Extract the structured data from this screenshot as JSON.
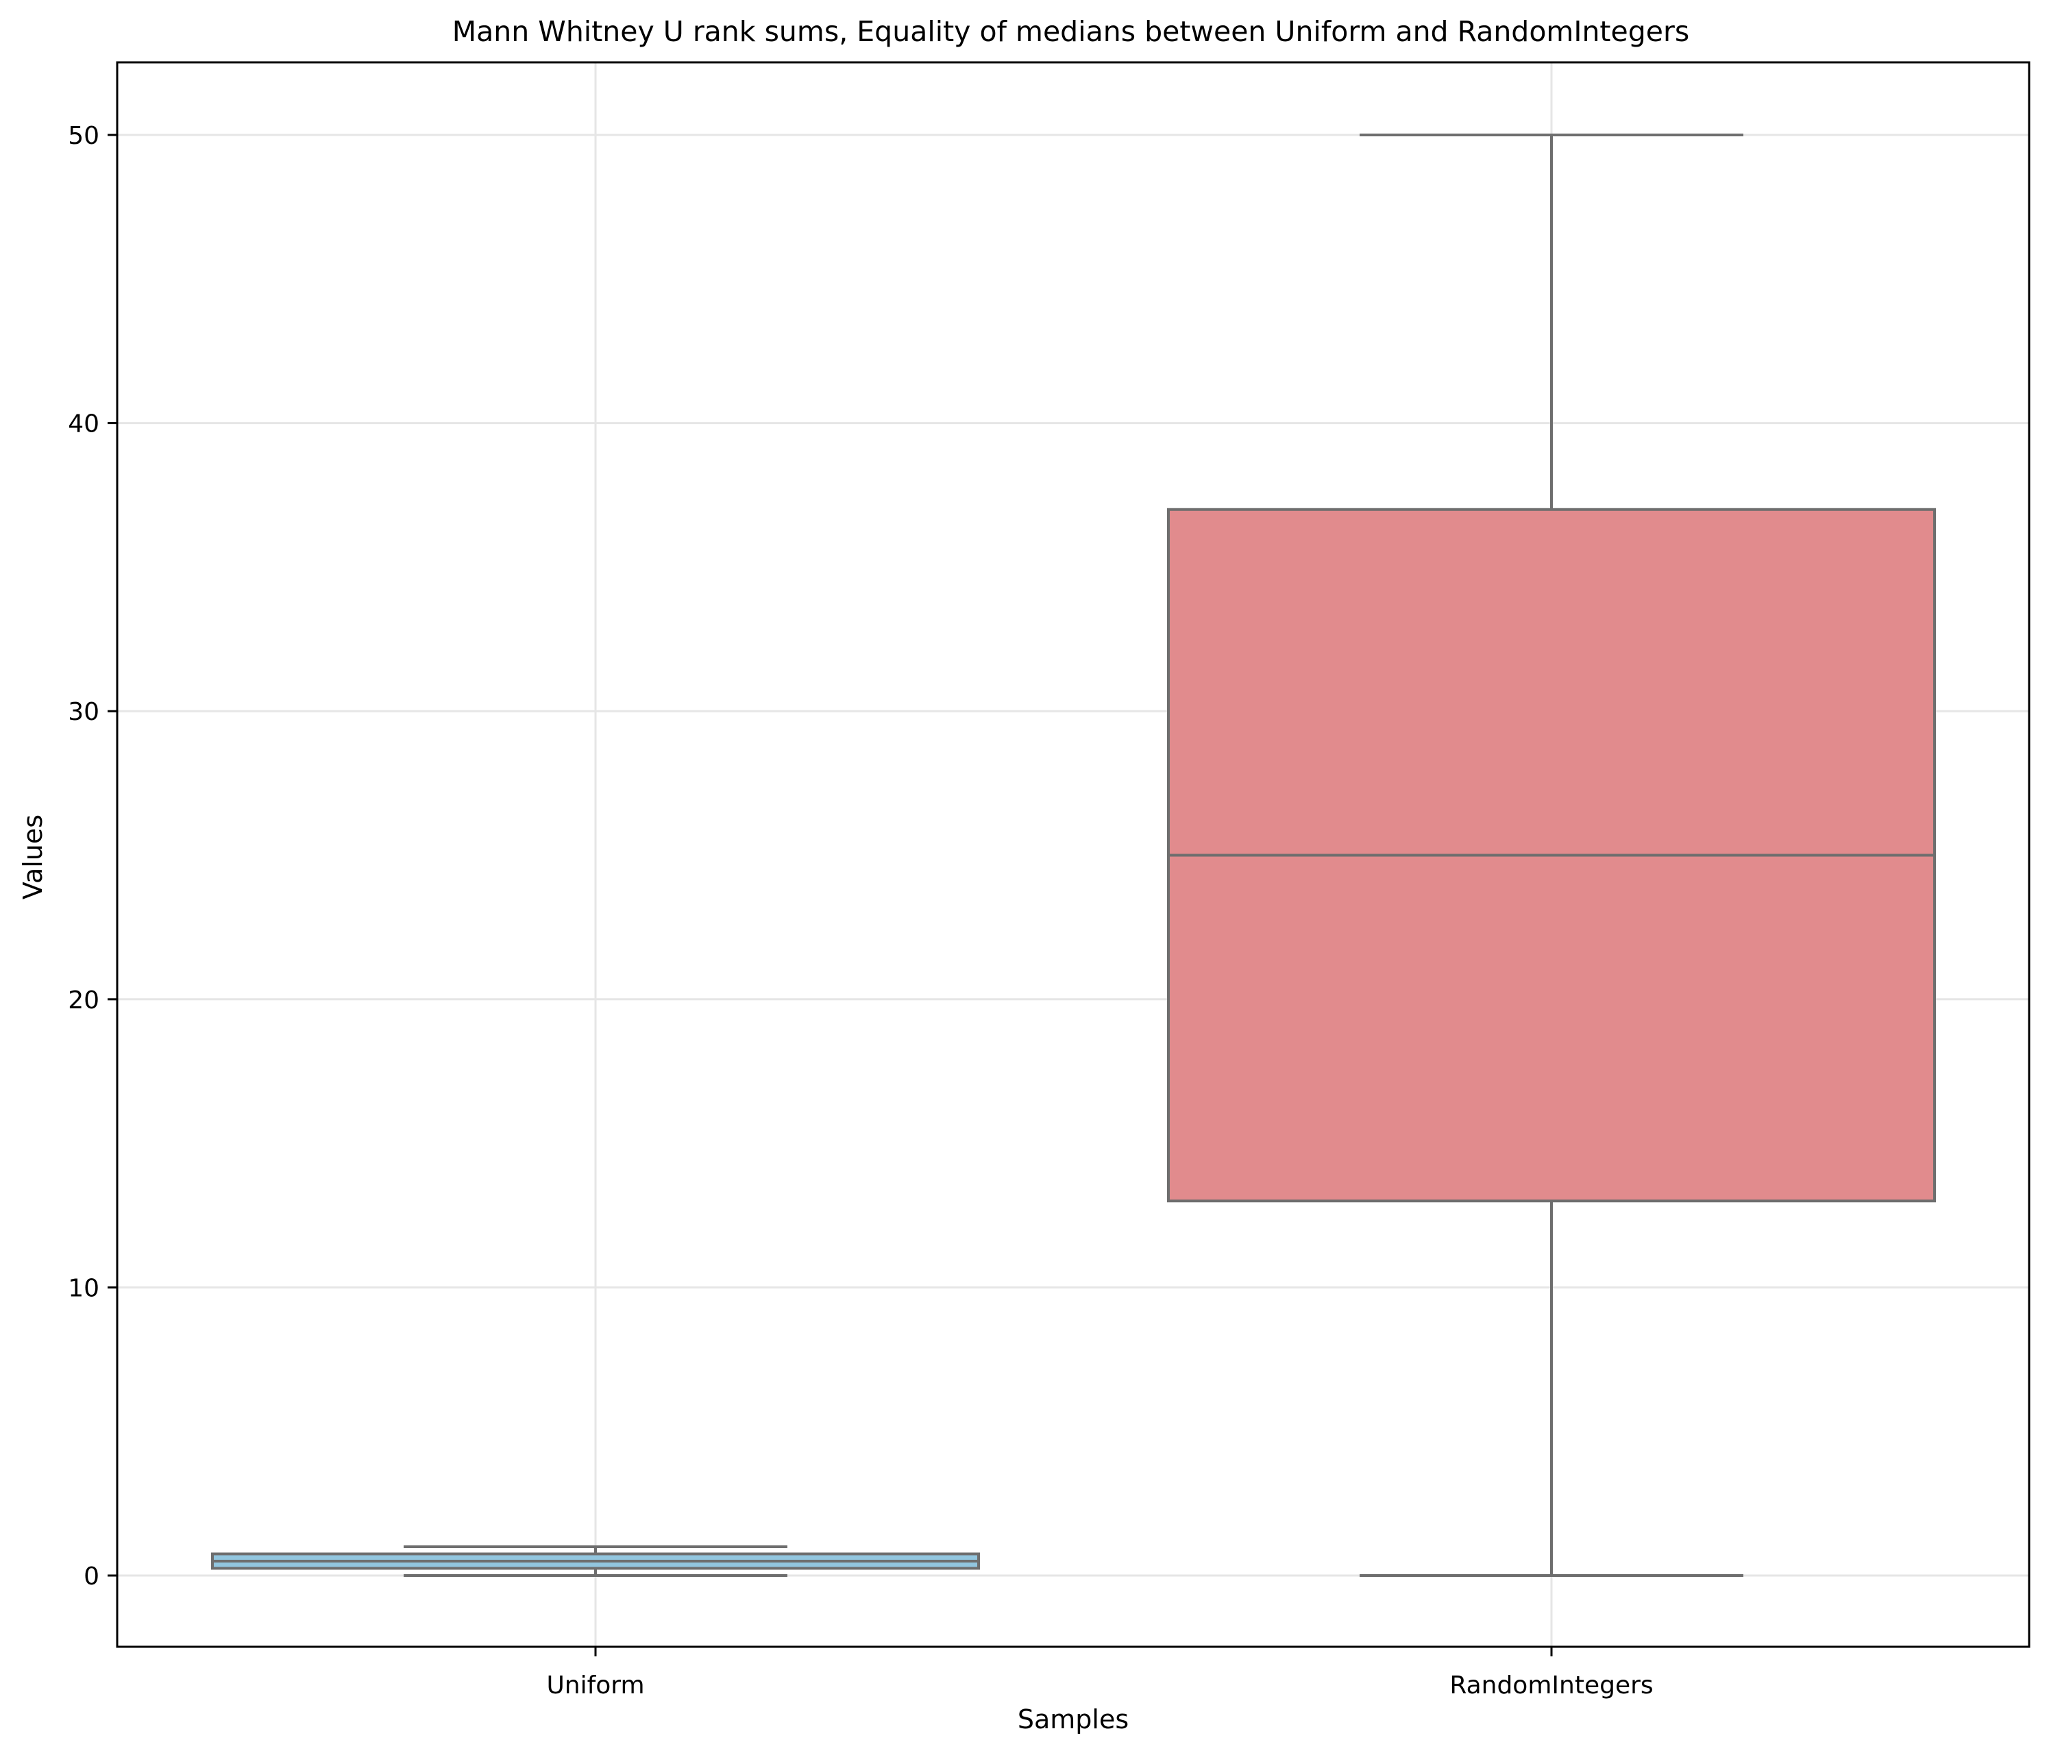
{
  "chart_data": {
    "type": "box",
    "title": "Mann Whitney U rank sums, Equality of medians between Uniform and RandomIntegers",
    "xlabel": "Samples",
    "ylabel": "Values",
    "categories": [
      "Uniform",
      "RandomIntegers"
    ],
    "ylim": [
      -2.5,
      52.5
    ],
    "yticks": [
      0,
      10,
      20,
      30,
      40,
      50
    ],
    "grid": true,
    "series": [
      {
        "name": "Uniform",
        "whisker_low": 0.0,
        "q1": 0.25,
        "median": 0.5,
        "q3": 0.75,
        "whisker_high": 1.0,
        "color": "#92c6df"
      },
      {
        "name": "RandomIntegers",
        "whisker_low": 0,
        "q1": 13,
        "median": 25,
        "q3": 37,
        "whisker_high": 50,
        "color": "#e18b8d"
      }
    ],
    "line_color": "#6e6e6e",
    "grid_color": "#e6e6e6"
  }
}
